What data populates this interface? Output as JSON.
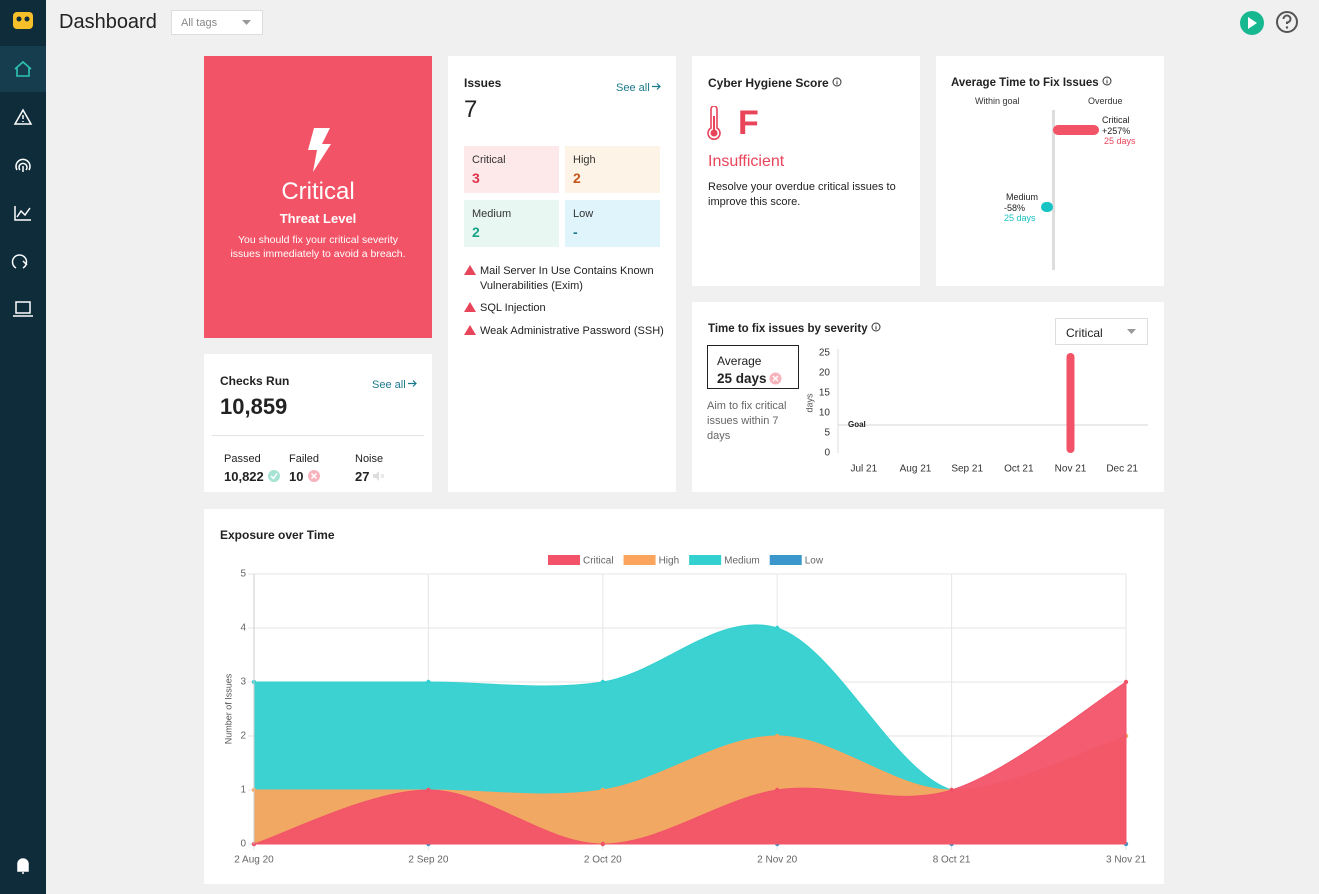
{
  "header": {
    "title": "Dashboard",
    "tag_filter": "All tags"
  },
  "threat": {
    "level": "Critical",
    "label": "Threat Level",
    "message": "You should fix your critical severity issues immediately to avoid a breach."
  },
  "issues": {
    "title": "Issues",
    "see_all": "See all",
    "total": 7,
    "severities": [
      {
        "name": "Critical",
        "count": 3
      },
      {
        "name": "High",
        "count": 2
      },
      {
        "name": "Medium",
        "count": 2
      },
      {
        "name": "Low",
        "count": "-"
      }
    ],
    "items": [
      "Mail Server In Use Contains Known Vulnerabilities (Exim)",
      "SQL Injection",
      "Weak Administrative Password (SSH)"
    ]
  },
  "checks": {
    "title": "Checks Run",
    "see_all": "See all",
    "total": "10,859",
    "stats": [
      {
        "label": "Passed",
        "value": "10,822"
      },
      {
        "label": "Failed",
        "value": "10"
      },
      {
        "label": "Noise",
        "value": "27"
      }
    ]
  },
  "hygiene": {
    "title": "Cyber Hygiene Score",
    "grade": "F",
    "status": "Insufficient",
    "message": "Resolve your overdue critical issues to improve this score."
  },
  "fix_time": {
    "title": "Average Time to Fix Issues",
    "within_goal": "Within goal",
    "overdue": "Overdue",
    "items": [
      {
        "name": "Critical",
        "change": "+257%",
        "days": "25 days"
      },
      {
        "name": "Medium",
        "change": "-58%",
        "days": "25 days"
      }
    ]
  },
  "severity_fix": {
    "filter": "Critical",
    "average_label": "Average",
    "average_value": "25 days",
    "note": "Aim to fix critical issues within 7 days"
  },
  "chart_data": [
    {
      "type": "bar",
      "title": "Time to fix issues by severity",
      "y_label": "days",
      "categories": [
        "Jul 21",
        "Aug 21",
        "Sep 21",
        "Oct 21",
        "Nov 21",
        "Dec 21"
      ],
      "values": [
        null,
        null,
        null,
        null,
        25,
        null
      ],
      "color": "#f35366",
      "ylim": [
        0,
        25
      ],
      "yticks": [
        0,
        5,
        10,
        15,
        20,
        25
      ],
      "goal": {
        "label": "Goal",
        "value": 7
      }
    },
    {
      "type": "area",
      "title": "Exposure over Time",
      "y_label": "Number of Issues",
      "categories": [
        "2 Aug 20",
        "2 Sep 20",
        "2 Oct 20",
        "2 Nov 20",
        "8 Oct 21",
        "3 Nov 21"
      ],
      "series": [
        {
          "name": "Critical",
          "color": "#f25369",
          "values": [
            0,
            1,
            0,
            1,
            1,
            3
          ]
        },
        {
          "name": "High",
          "color": "#fba55c",
          "values": [
            1,
            1,
            1,
            2,
            1,
            2
          ]
        },
        {
          "name": "Medium",
          "color": "#33d0d0",
          "values": [
            3,
            3,
            3,
            4,
            1,
            2
          ]
        },
        {
          "name": "Low",
          "color": "#3b96cc",
          "values": [
            0,
            0,
            0,
            0,
            0,
            0
          ]
        }
      ],
      "ylim": [
        0,
        5
      ],
      "yticks": [
        0,
        1,
        2,
        3,
        4,
        5
      ],
      "grid": true,
      "legend": "top"
    }
  ]
}
